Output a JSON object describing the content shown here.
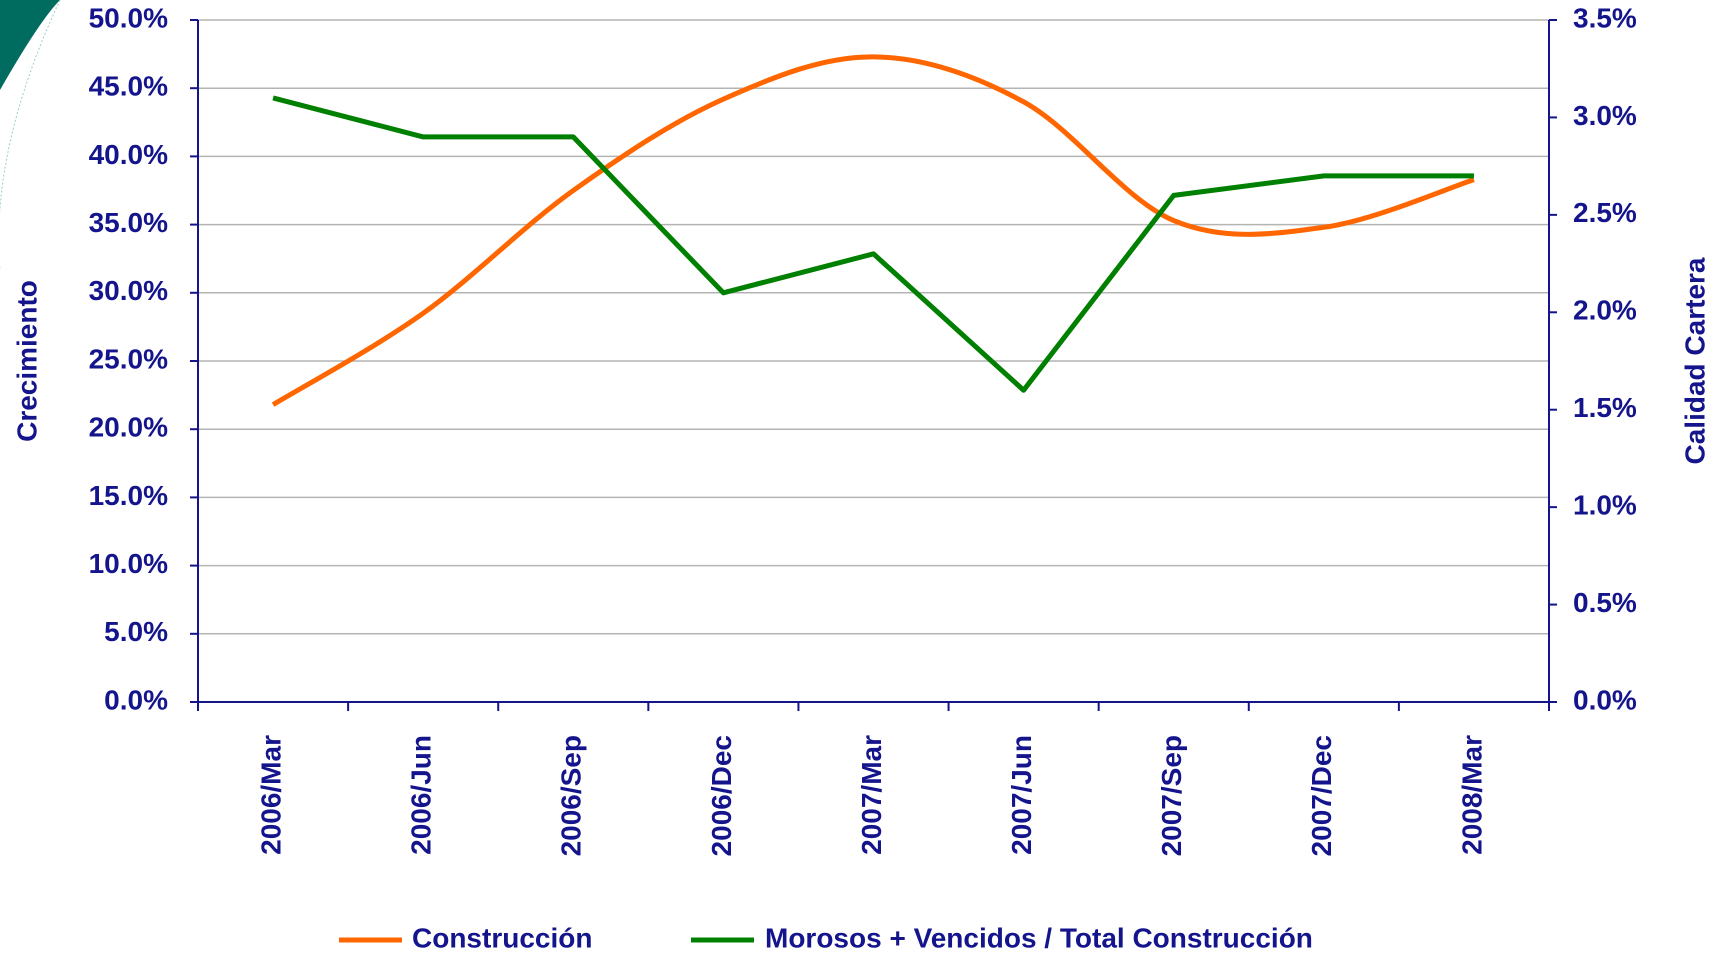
{
  "chart_data": {
    "type": "line",
    "categories": [
      "2006/Mar",
      "2006/Jun",
      "2006/Sep",
      "2006/Dec",
      "2007/Mar",
      "2007/Jun",
      "2007/Sep",
      "2007/Dec",
      "2008/Mar"
    ],
    "series": [
      {
        "name": "Construcción",
        "color": "#ff6600",
        "values": [
          21.8,
          28.5,
          37.5,
          44.2,
          47.3,
          44.0,
          35.3,
          34.8,
          38.3
        ]
      },
      {
        "name": "Morosos + Vencidos / Total Construcción",
        "color": "#008000",
        "axis": "y2",
        "values": [
          3.1,
          2.9,
          2.9,
          2.1,
          2.3,
          1.6,
          2.6,
          2.7,
          2.7
        ]
      }
    ],
    "ylabel": "Crecimiento",
    "y2label": "Calidad Cartera",
    "ylim": [
      0,
      50
    ],
    "yticks": [
      {
        "value": 0,
        "label": "0.0%"
      },
      {
        "value": 5,
        "label": "5.0%"
      },
      {
        "value": 10,
        "label": "10.0%"
      },
      {
        "value": 15,
        "label": "15.0%"
      },
      {
        "value": 20,
        "label": "20.0%"
      },
      {
        "value": 25,
        "label": "25.0%"
      },
      {
        "value": 30,
        "label": "30.0%"
      },
      {
        "value": 35,
        "label": "35.0%"
      },
      {
        "value": 40,
        "label": "40.0%"
      },
      {
        "value": 45,
        "label": "45.0%"
      },
      {
        "value": 50,
        "label": "50.0%"
      }
    ],
    "y2lim": [
      0,
      3.5
    ],
    "y2ticks": [
      {
        "value": 0,
        "label": "0.0%"
      },
      {
        "value": 0.5,
        "label": "0.5%"
      },
      {
        "value": 1,
        "label": "1.0%"
      },
      {
        "value": 1.5,
        "label": "1.5%"
      },
      {
        "value": 2,
        "label": "2.0%"
      },
      {
        "value": 2.5,
        "label": "2.5%"
      },
      {
        "value": 3,
        "label": "3.0%"
      },
      {
        "value": 3.5,
        "label": "3.5%"
      }
    ],
    "grid": true,
    "legend": "bottom"
  }
}
